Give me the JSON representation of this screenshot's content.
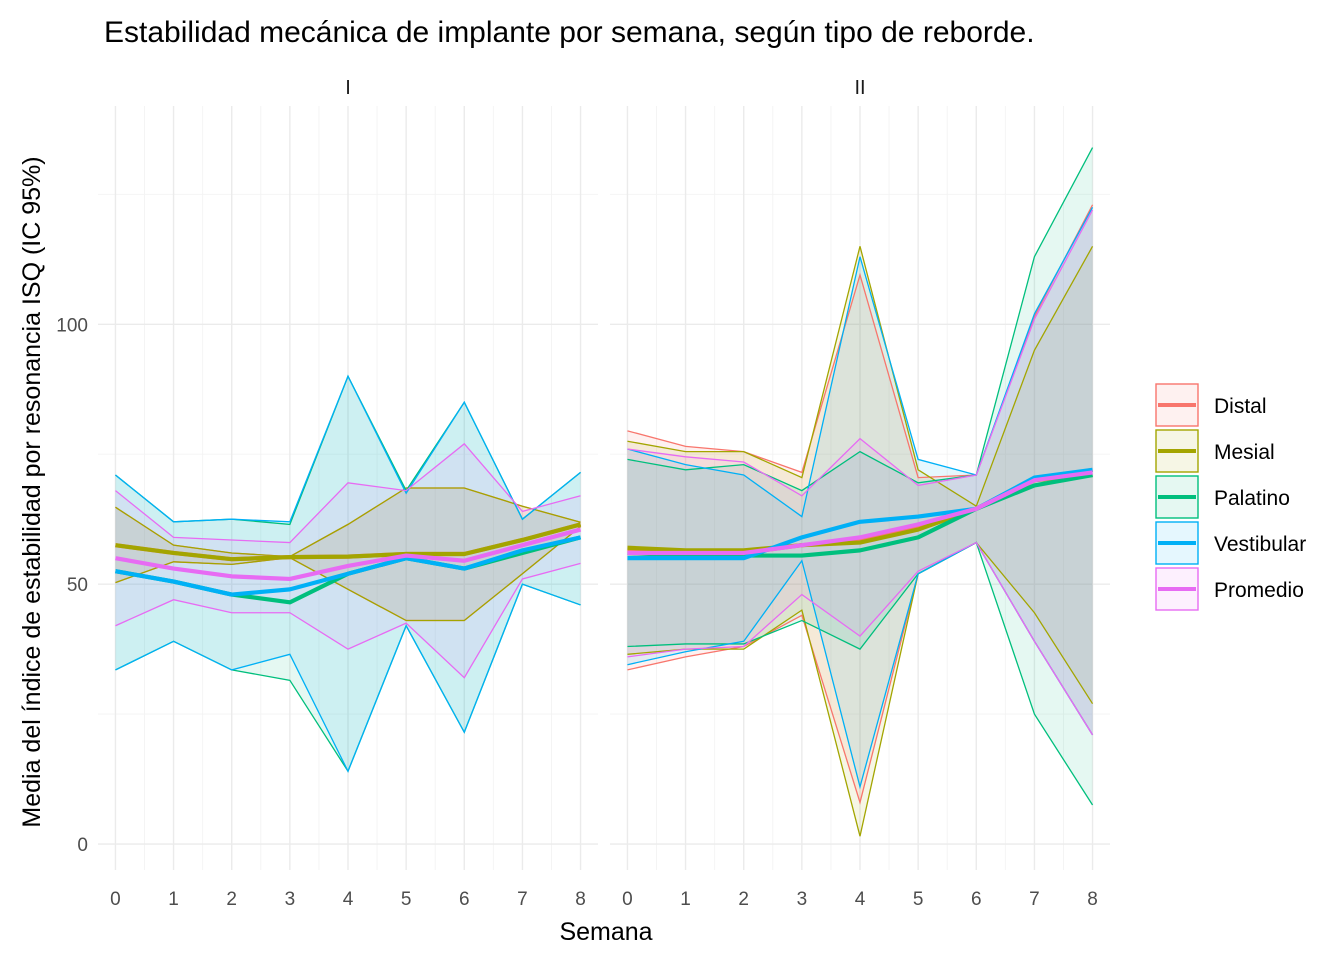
{
  "chart_data": {
    "type": "line",
    "title": "Estabilidad mecánica de implante por semana, según tipo de reborde.",
    "xlabel": "Semana",
    "ylabel": "Media del índice de estabilidad por resonancia ISQ (IC 95%)",
    "x": [
      0,
      1,
      2,
      3,
      4,
      5,
      6,
      7,
      8
    ],
    "xlim": [
      -0.3,
      8.3
    ],
    "ylim": [
      -5,
      142
    ],
    "yticks": [
      0,
      50,
      100
    ],
    "grid": true,
    "legend_position": "right",
    "colors": {
      "Distal": "#F8766D",
      "Mesial": "#A3A500",
      "Palatino": "#00BF7D",
      "Vestibular": "#00B0F6",
      "Promedio": "#E76BF3"
    },
    "legend": [
      "Distal",
      "Mesial",
      "Palatino",
      "Vestibular",
      "Promedio"
    ],
    "panels": [
      {
        "label": "I",
        "series": [
          {
            "name": "Distal",
            "mean": [
              57.5,
              56.0,
              54.8,
              55.2,
              55.3,
              55.8,
              55.8,
              58.5,
              61.5
            ],
            "lower": [
              50.3,
              54.3,
              53.8,
              55.1,
              49.0,
              43.0,
              43.0,
              52.0,
              61.1
            ],
            "upper": [
              64.8,
              57.5,
              56.0,
              55.3,
              61.5,
              68.5,
              68.5,
              65.0,
              61.9
            ]
          },
          {
            "name": "Mesial",
            "mean": [
              57.5,
              56.0,
              54.8,
              55.2,
              55.3,
              55.8,
              55.8,
              58.5,
              61.5
            ],
            "lower": [
              50.3,
              54.3,
              53.8,
              55.1,
              49.0,
              43.0,
              43.0,
              52.0,
              61.1
            ],
            "upper": [
              64.8,
              57.5,
              56.0,
              55.3,
              61.5,
              68.5,
              68.5,
              65.0,
              61.9
            ]
          },
          {
            "name": "Palatino",
            "mean": [
              52.5,
              50.5,
              48.0,
              46.5,
              52.0,
              55.0,
              53.0,
              56.0,
              59.0
            ],
            "lower": [
              33.5,
              39.0,
              33.5,
              31.5,
              14.0,
              42.0,
              21.5,
              50.0,
              46.0
            ],
            "upper": [
              71.0,
              62.0,
              62.5,
              61.5,
              90.0,
              68.0,
              85.0,
              62.5,
              71.5
            ]
          },
          {
            "name": "Vestibular",
            "mean": [
              52.5,
              50.5,
              48.0,
              49.0,
              52.0,
              55.0,
              53.0,
              56.5,
              59.0
            ],
            "lower": [
              33.5,
              39.0,
              33.5,
              36.5,
              14.0,
              42.0,
              21.5,
              50.0,
              46.0
            ],
            "upper": [
              71.0,
              62.0,
              62.5,
              62.0,
              90.0,
              67.5,
              85.0,
              62.5,
              71.5
            ]
          },
          {
            "name": "Promedio",
            "mean": [
              55.0,
              53.0,
              51.5,
              51.0,
              53.5,
              55.5,
              54.5,
              57.5,
              60.5
            ],
            "lower": [
              42.0,
              47.0,
              44.5,
              44.5,
              37.5,
              42.5,
              32.0,
              51.0,
              54.0
            ],
            "upper": [
              68.0,
              59.0,
              58.5,
              58.0,
              69.5,
              68.0,
              77.0,
              64.0,
              67.0
            ]
          }
        ]
      },
      {
        "label": "II",
        "series": [
          {
            "name": "Distal",
            "mean": [
              56.5,
              56.0,
              56.0,
              57.5,
              58.5,
              61.0,
              64.5,
              70.0,
              72.0
            ],
            "lower": [
              33.5,
              36.0,
              38.0,
              44.0,
              8.0,
              52.0,
              58.0,
              39.0,
              21.0
            ],
            "upper": [
              79.5,
              76.5,
              75.5,
              71.5,
              109.5,
              70.5,
              71.0,
              101.5,
              123.0
            ]
          },
          {
            "name": "Mesial",
            "mean": [
              57.0,
              56.5,
              56.5,
              57.5,
              58.0,
              60.5,
              64.5,
              70.0,
              71.0
            ],
            "lower": [
              36.5,
              37.5,
              37.5,
              45.0,
              1.5,
              52.0,
              58.0,
              44.5,
              27.0
            ],
            "upper": [
              77.5,
              75.5,
              75.5,
              70.5,
              115.0,
              72.0,
              65.0,
              95.0,
              115.0
            ]
          },
          {
            "name": "Palatino",
            "mean": [
              56.0,
              55.5,
              55.5,
              55.5,
              56.5,
              59.0,
              64.5,
              69.0,
              71.0
            ],
            "lower": [
              38.0,
              38.5,
              38.5,
              43.0,
              37.5,
              52.0,
              58.0,
              25.0,
              7.5
            ],
            "upper": [
              74.0,
              72.0,
              73.0,
              68.0,
              75.5,
              69.5,
              71.0,
              113.0,
              134.0
            ]
          },
          {
            "name": "Vestibular",
            "mean": [
              55.0,
              55.0,
              55.0,
              59.0,
              62.0,
              63.0,
              64.5,
              70.5,
              72.0
            ],
            "lower": [
              34.5,
              37.0,
              39.0,
              54.5,
              11.0,
              52.0,
              58.0,
              39.0,
              21.0
            ],
            "upper": [
              76.0,
              73.0,
              71.0,
              63.0,
              113.0,
              74.0,
              71.0,
              102.0,
              122.5
            ]
          },
          {
            "name": "Promedio",
            "mean": [
              56.0,
              56.0,
              56.0,
              57.5,
              59.0,
              61.5,
              64.5,
              70.0,
              71.5
            ],
            "lower": [
              36.0,
              37.5,
              38.0,
              48.0,
              40.0,
              52.5,
              58.0,
              39.0,
              21.0
            ],
            "upper": [
              76.0,
              74.5,
              73.5,
              67.0,
              78.0,
              69.0,
              71.0,
              101.0,
              122.0
            ]
          }
        ]
      }
    ]
  }
}
